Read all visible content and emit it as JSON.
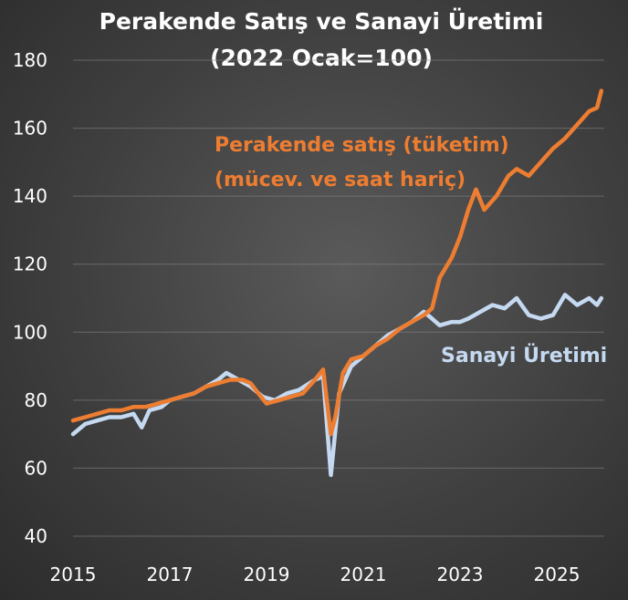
{
  "chart_data": {
    "type": "line",
    "title": "Perakende Satış ve Sanayi Üretimi",
    "subtitle": "(2022 Ocak=100)",
    "xlabel": "",
    "ylabel": "",
    "xlim": [
      2015,
      2025.92
    ],
    "ylim": [
      40,
      180
    ],
    "x_ticks": [
      "2015",
      "2017",
      "2019",
      "2021",
      "2023",
      "2025"
    ],
    "x_tick_values": [
      2015,
      2017,
      2019,
      2021,
      2023,
      2025
    ],
    "y_ticks": [
      "40",
      "60",
      "80",
      "100",
      "120",
      "140",
      "160",
      "180"
    ],
    "y_tick_values": [
      40,
      60,
      80,
      100,
      120,
      140,
      160,
      180
    ],
    "grid": true,
    "legend": "inline-labels",
    "series": [
      {
        "name": "Perakende satış (tüketim)",
        "name_line2": "(mücev. ve saat hariç)",
        "color": "#ed7d31",
        "points": [
          [
            2015.0,
            74
          ],
          [
            2015.25,
            75
          ],
          [
            2015.5,
            76
          ],
          [
            2015.75,
            77
          ],
          [
            2016.0,
            77
          ],
          [
            2016.25,
            78
          ],
          [
            2016.5,
            78
          ],
          [
            2016.75,
            79
          ],
          [
            2017.0,
            80
          ],
          [
            2017.25,
            81
          ],
          [
            2017.5,
            82
          ],
          [
            2017.75,
            84
          ],
          [
            2018.0,
            85
          ],
          [
            2018.25,
            86
          ],
          [
            2018.5,
            86
          ],
          [
            2018.67,
            85
          ],
          [
            2018.83,
            82
          ],
          [
            2019.0,
            79
          ],
          [
            2019.25,
            80
          ],
          [
            2019.5,
            81
          ],
          [
            2019.75,
            82
          ],
          [
            2020.0,
            86
          ],
          [
            2020.17,
            89
          ],
          [
            2020.33,
            70
          ],
          [
            2020.42,
            75
          ],
          [
            2020.58,
            88
          ],
          [
            2020.75,
            92
          ],
          [
            2021.0,
            93
          ],
          [
            2021.25,
            96
          ],
          [
            2021.5,
            98
          ],
          [
            2021.75,
            101
          ],
          [
            2022.0,
            103
          ],
          [
            2022.25,
            105
          ],
          [
            2022.42,
            107
          ],
          [
            2022.58,
            116
          ],
          [
            2022.83,
            122
          ],
          [
            2023.0,
            128
          ],
          [
            2023.17,
            136
          ],
          [
            2023.33,
            142
          ],
          [
            2023.5,
            136
          ],
          [
            2023.75,
            140
          ],
          [
            2024.0,
            146
          ],
          [
            2024.17,
            148
          ],
          [
            2024.42,
            146
          ],
          [
            2024.67,
            150
          ],
          [
            2024.92,
            154
          ],
          [
            2025.17,
            157
          ],
          [
            2025.42,
            161
          ],
          [
            2025.67,
            165
          ],
          [
            2025.83,
            166
          ],
          [
            2025.92,
            171
          ]
        ]
      },
      {
        "name": "Sanayi Üretimi",
        "color": "#c5d9f1",
        "points": [
          [
            2015.0,
            70
          ],
          [
            2015.25,
            73
          ],
          [
            2015.5,
            74
          ],
          [
            2015.75,
            75
          ],
          [
            2016.0,
            75
          ],
          [
            2016.25,
            76
          ],
          [
            2016.42,
            72
          ],
          [
            2016.58,
            77
          ],
          [
            2016.83,
            78
          ],
          [
            2017.0,
            80
          ],
          [
            2017.25,
            81
          ],
          [
            2017.5,
            82
          ],
          [
            2017.75,
            84
          ],
          [
            2018.0,
            86
          ],
          [
            2018.17,
            88
          ],
          [
            2018.42,
            86
          ],
          [
            2018.67,
            84
          ],
          [
            2018.92,
            81
          ],
          [
            2019.17,
            80
          ],
          [
            2019.42,
            82
          ],
          [
            2019.67,
            83
          ],
          [
            2020.0,
            86
          ],
          [
            2020.17,
            87
          ],
          [
            2020.33,
            58
          ],
          [
            2020.5,
            82
          ],
          [
            2020.75,
            90
          ],
          [
            2021.0,
            93
          ],
          [
            2021.25,
            96
          ],
          [
            2021.5,
            99
          ],
          [
            2021.75,
            101
          ],
          [
            2022.0,
            103
          ],
          [
            2022.25,
            106
          ],
          [
            2022.42,
            104
          ],
          [
            2022.58,
            102
          ],
          [
            2022.83,
            103
          ],
          [
            2023.0,
            103
          ],
          [
            2023.17,
            104
          ],
          [
            2023.42,
            106
          ],
          [
            2023.67,
            108
          ],
          [
            2023.92,
            107
          ],
          [
            2024.17,
            110
          ],
          [
            2024.42,
            105
          ],
          [
            2024.67,
            104
          ],
          [
            2024.92,
            105
          ],
          [
            2025.17,
            111
          ],
          [
            2025.42,
            108
          ],
          [
            2025.67,
            110
          ],
          [
            2025.83,
            108
          ],
          [
            2025.92,
            110
          ]
        ]
      }
    ]
  }
}
